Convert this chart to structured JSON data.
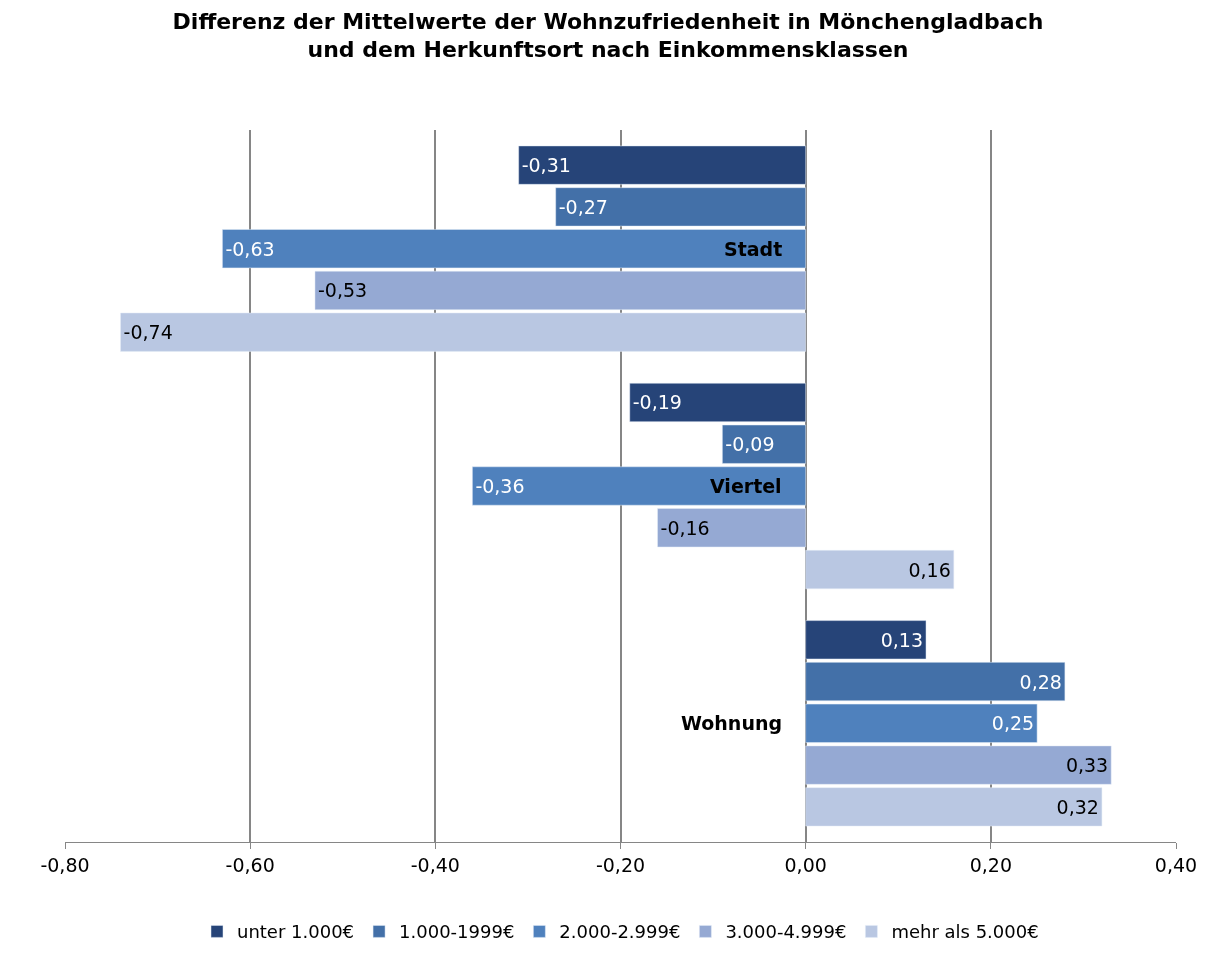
{
  "chart_data": {
    "type": "bar",
    "orientation": "horizontal",
    "title": "Differenz der Mittelwerte der Wohnzufriedenheit in Mönchengladbach\nund dem Herkunftsort nach Einkommensklassen",
    "categories": [
      "Stadt",
      "Viertel",
      "Wohnung"
    ],
    "series": [
      {
        "name": "unter 1.000€",
        "color": "#264478",
        "values": [
          -0.31,
          -0.19,
          0.13
        ],
        "value_labels": [
          "-0,31",
          "-0,19",
          "0,13"
        ]
      },
      {
        "name": "1.000-1999€",
        "color": "#4370a8",
        "values": [
          -0.27,
          -0.09,
          0.28
        ],
        "value_labels": [
          "-0,27",
          "-0,09",
          "0,28"
        ]
      },
      {
        "name": "2.000-2.999€",
        "color": "#4f81bd",
        "values": [
          -0.63,
          -0.36,
          0.25
        ],
        "value_labels": [
          "-0,63",
          "-0,36",
          "0,25"
        ]
      },
      {
        "name": "3.000-4.999€",
        "color": "#95a9d3",
        "values": [
          -0.53,
          -0.16,
          0.33
        ],
        "value_labels": [
          "-0,53",
          "-0,16",
          "0,33"
        ]
      },
      {
        "name": "mehr als 5.000€",
        "color": "#b9c7e2",
        "values": [
          -0.74,
          0.16,
          0.32
        ],
        "value_labels": [
          "-0,74",
          "0,16",
          "0,32"
        ]
      }
    ],
    "xlim": [
      -0.8,
      0.4
    ],
    "xticks": [
      {
        "value": -0.8,
        "label": "-0,80"
      },
      {
        "value": -0.6,
        "label": "-0,60"
      },
      {
        "value": -0.4,
        "label": "-0,40"
      },
      {
        "value": -0.2,
        "label": "-0,20"
      },
      {
        "value": 0,
        "label": "0,00"
      },
      {
        "value": 0.2,
        "label": "0,20"
      },
      {
        "value": 0.4,
        "label": "0,40"
      }
    ],
    "grid": "x",
    "legend": "bottom"
  }
}
